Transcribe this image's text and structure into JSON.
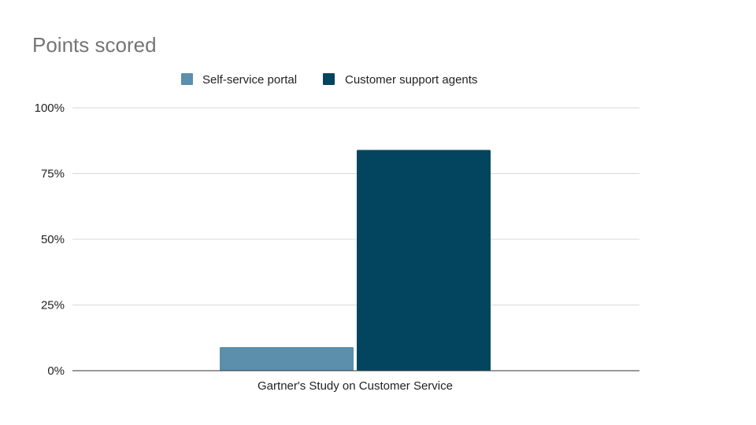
{
  "chart_data": {
    "type": "bar",
    "title": "Points scored",
    "categories": [
      "Gartner's Study on Customer Service"
    ],
    "series": [
      {
        "name": "Self-service portal",
        "values": [
          9
        ],
        "color": "#5b8fac"
      },
      {
        "name": "Customer support agents",
        "values": [
          84
        ],
        "color": "#03455f"
      }
    ],
    "xlabel": "",
    "ylabel": "",
    "ylim": [
      0,
      100
    ],
    "yticks": [
      0,
      25,
      50,
      75,
      100
    ],
    "ytick_labels": [
      "0%",
      "25%",
      "50%",
      "75%",
      "100%"
    ],
    "grid": true,
    "legend_position": "top"
  },
  "colors": {
    "gridline": "#d9d9d9",
    "axis": "#333333",
    "title": "#757575"
  }
}
